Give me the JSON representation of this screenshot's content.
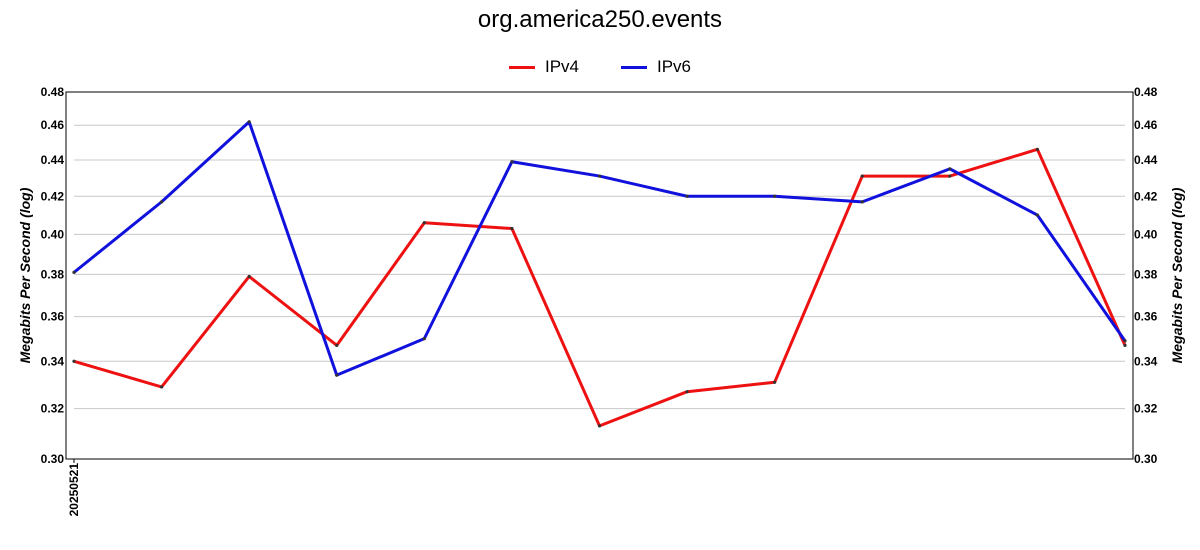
{
  "chart_data": {
    "type": "line",
    "title": "org.america250.events",
    "ylabel": "Megabits Per Second (log)",
    "y_scale": "log",
    "ylim": [
      0.3,
      0.48
    ],
    "y_ticks": [
      "0.30",
      "0.32",
      "0.34",
      "0.36",
      "0.38",
      "0.40",
      "0.42",
      "0.44",
      "0.46",
      "0.48"
    ],
    "x_tick_labels": [
      "20250521"
    ],
    "x": [
      1,
      2,
      3,
      4,
      5,
      6,
      7,
      8,
      9,
      10,
      11,
      12,
      13
    ],
    "legend_position": "top-center",
    "grid": true,
    "series": [
      {
        "name": "IPv4",
        "color": "#ee1111",
        "values": [
          0.34,
          0.329,
          0.379,
          0.347,
          0.406,
          0.403,
          0.313,
          0.327,
          0.331,
          0.431,
          0.431,
          0.446,
          0.347
        ]
      },
      {
        "name": "IPv6",
        "color": "#1111dd",
        "values": [
          0.381,
          0.417,
          0.462,
          0.334,
          0.35,
          0.439,
          0.431,
          0.42,
          0.42,
          0.417,
          0.435,
          0.41,
          0.349
        ]
      }
    ]
  }
}
